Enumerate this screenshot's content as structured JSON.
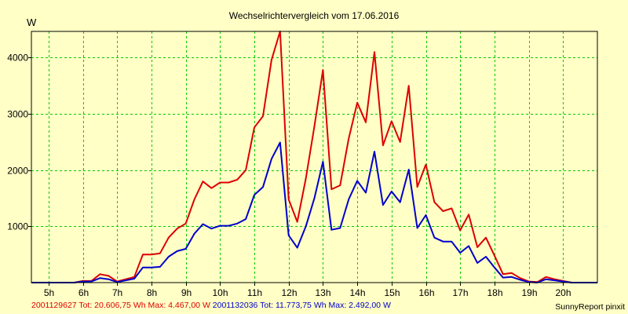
{
  "chart_data": {
    "type": "line",
    "title": "Wechselrichtervergleich vom 17.06.2016",
    "ylabel": "W",
    "xlabel": "",
    "xlim": [
      4.5,
      21.0
    ],
    "ylim": [
      0,
      4467
    ],
    "x_ticks": [
      {
        "value": 5,
        "label": "5h"
      },
      {
        "value": 6,
        "label": "6h"
      },
      {
        "value": 7,
        "label": "7h"
      },
      {
        "value": 8,
        "label": "8h"
      },
      {
        "value": 9,
        "label": "9h"
      },
      {
        "value": 10,
        "label": "10h"
      },
      {
        "value": 11,
        "label": "11h"
      },
      {
        "value": 12,
        "label": "12h"
      },
      {
        "value": 13,
        "label": "13h"
      },
      {
        "value": 14,
        "label": "14h"
      },
      {
        "value": 15,
        "label": "15h"
      },
      {
        "value": 16,
        "label": "16h"
      },
      {
        "value": 17,
        "label": "17h"
      },
      {
        "value": 18,
        "label": "18h"
      },
      {
        "value": 19,
        "label": "19h"
      },
      {
        "value": 20,
        "label": "20h"
      }
    ],
    "y_ticks": [
      {
        "value": 1000,
        "label": "1000"
      },
      {
        "value": 2000,
        "label": "2000"
      },
      {
        "value": 3000,
        "label": "3000"
      },
      {
        "value": 4000,
        "label": "4000"
      }
    ],
    "grid": true,
    "series": [
      {
        "name": "2001129627",
        "color": "#dd0000",
        "x": [
          4.5,
          5.0,
          5.5,
          5.75,
          6.0,
          6.25,
          6.5,
          6.75,
          7.0,
          7.25,
          7.5,
          7.75,
          8.0,
          8.25,
          8.5,
          8.75,
          9.0,
          9.25,
          9.5,
          9.75,
          10.0,
          10.25,
          10.5,
          10.75,
          11.0,
          11.25,
          11.5,
          11.75,
          12.0,
          12.25,
          12.5,
          12.75,
          13.0,
          13.25,
          13.5,
          13.75,
          14.0,
          14.25,
          14.5,
          14.75,
          15.0,
          15.25,
          15.5,
          15.75,
          16.0,
          16.25,
          16.5,
          16.75,
          17.0,
          17.25,
          17.5,
          17.75,
          18.0,
          18.25,
          18.5,
          18.75,
          19.0,
          19.25,
          19.5,
          19.75,
          20.0,
          20.25,
          20.5,
          20.75,
          21.0
        ],
        "y": [
          0,
          0,
          0,
          0,
          30,
          30,
          150,
          120,
          20,
          60,
          100,
          500,
          500,
          520,
          800,
          960,
          1050,
          1480,
          1800,
          1680,
          1780,
          1780,
          1830,
          2000,
          2760,
          2960,
          3960,
          4467,
          1480,
          1080,
          1850,
          2780,
          3780,
          1660,
          1730,
          2560,
          3200,
          2850,
          4100,
          2440,
          2870,
          2500,
          3500,
          1700,
          2100,
          1430,
          1270,
          1320,
          930,
          1210,
          630,
          800,
          480,
          150,
          170,
          80,
          20,
          10,
          100,
          60,
          30,
          0,
          0,
          0,
          0
        ]
      },
      {
        "name": "2001132036",
        "color": "#0000cc",
        "x": [
          4.5,
          5.0,
          5.5,
          5.75,
          6.0,
          6.25,
          6.5,
          6.75,
          7.0,
          7.25,
          7.5,
          7.75,
          8.0,
          8.25,
          8.5,
          8.75,
          9.0,
          9.25,
          9.5,
          9.75,
          10.0,
          10.25,
          10.5,
          10.75,
          11.0,
          11.25,
          11.5,
          11.75,
          12.0,
          12.25,
          12.5,
          12.75,
          13.0,
          13.25,
          13.5,
          13.75,
          14.0,
          14.25,
          14.5,
          14.75,
          15.0,
          15.25,
          15.5,
          15.75,
          16.0,
          16.25,
          16.5,
          16.75,
          17.0,
          17.25,
          17.5,
          17.75,
          18.0,
          18.25,
          18.5,
          18.75,
          19.0,
          19.25,
          19.5,
          19.75,
          20.0,
          20.25,
          20.5,
          20.75,
          21.0
        ],
        "y": [
          0,
          0,
          0,
          0,
          20,
          20,
          80,
          60,
          10,
          40,
          70,
          270,
          270,
          280,
          460,
          560,
          600,
          870,
          1040,
          960,
          1010,
          1010,
          1050,
          1130,
          1560,
          1700,
          2200,
          2492,
          840,
          620,
          1000,
          1500,
          2150,
          940,
          970,
          1480,
          1810,
          1600,
          2330,
          1380,
          1620,
          1430,
          2010,
          970,
          1200,
          800,
          730,
          730,
          530,
          650,
          350,
          460,
          270,
          90,
          100,
          50,
          10,
          0,
          60,
          40,
          20,
          0,
          0,
          0,
          0
        ]
      }
    ]
  },
  "footer": {
    "series1": "2001129627 Tot: 20.606,75 Wh Max: 4.467,00 W",
    "series2": "2001132036 Tot: 11.773,75 Wh Max: 2.492,00 W",
    "credit": "SunnyReport pinxit"
  }
}
